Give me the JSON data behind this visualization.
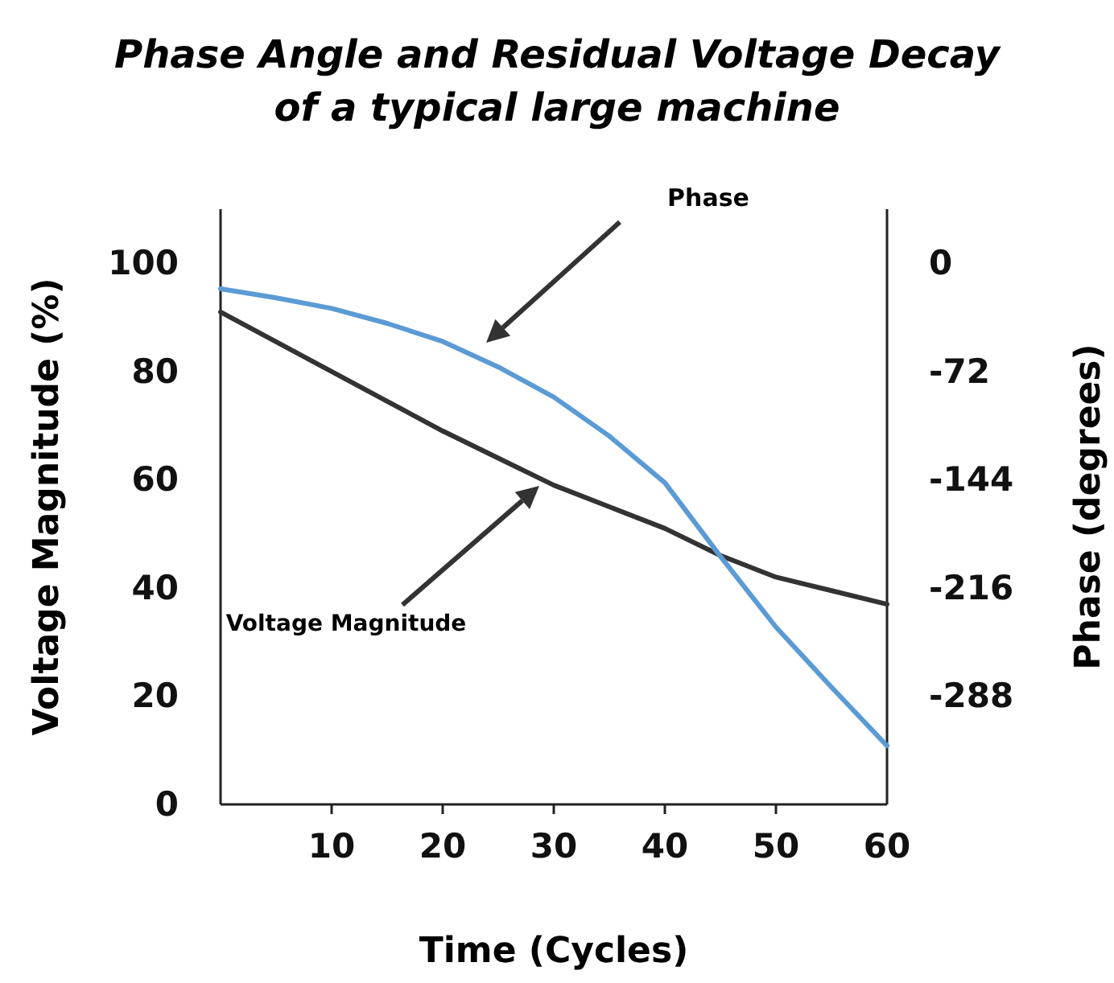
{
  "chart_data": {
    "type": "line",
    "title": "Phase Angle and Residual Voltage Decay of a typical large machine",
    "xlabel": "Time (Cycles)",
    "ylabel": "Voltage Magnitude (%)",
    "y2label": "Phase (degrees)",
    "x": [
      0,
      5,
      10,
      15,
      20,
      25,
      30,
      35,
      40,
      45,
      50,
      55,
      60
    ],
    "xlim": [
      0,
      60
    ],
    "xticks": [
      10,
      20,
      30,
      40,
      50,
      60
    ],
    "ylim": [
      0,
      110
    ],
    "yticks": [
      0,
      20,
      40,
      60,
      80,
      100
    ],
    "y2lim": [
      -360,
      36
    ],
    "y2ticks": [
      -288,
      -216,
      -144,
      -72,
      0
    ],
    "series": [
      {
        "color": "#333333",
        "values": [
          91,
          85.5,
          80,
          74.5,
          69,
          64,
          59,
          55,
          51,
          46,
          42,
          39.5,
          37
        ]
      },
      {
        "color": "#5b9bd5",
        "axis": "y2",
        "values": [
          -17,
          -23,
          -30,
          -40,
          -52,
          -69,
          -89,
          -115,
          -146,
          -195,
          -242,
          -282,
          -321
        ]
      }
    ],
    "annotations": [
      "Phase",
      "Voltage Magnitude"
    ],
    "legend": false
  }
}
